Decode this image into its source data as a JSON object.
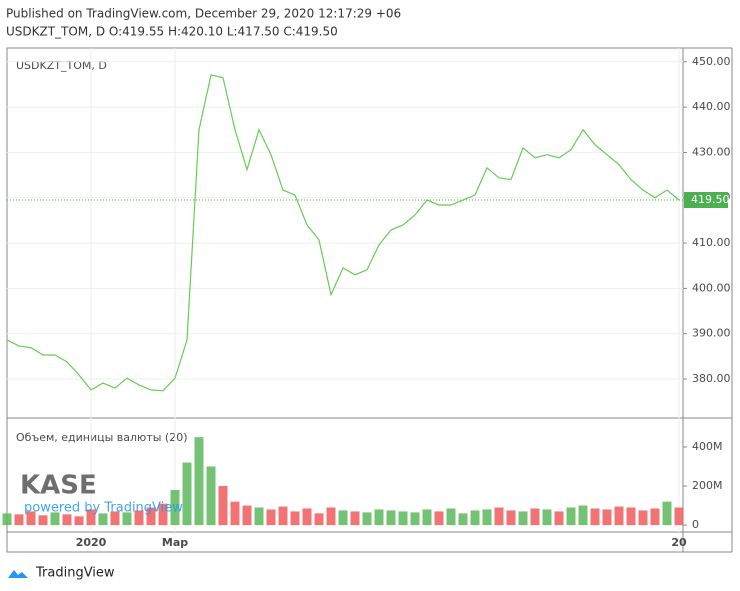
{
  "header": {
    "published": "Published on TradingView.com, December 29, 2020 12:17:29 +06",
    "ohlc": "USDKZT_TOM, D O:419.55 H:420.10 L:417.50 C:419.50"
  },
  "chart_data": [
    {
      "type": "line",
      "title": "USDKZT_TOM, D",
      "categories": [
        null,
        null,
        null,
        null,
        null,
        null,
        null,
        "2020",
        null,
        null,
        null,
        null,
        null,
        null,
        "Мар",
        null,
        null,
        null,
        null,
        null,
        null,
        null,
        null,
        null,
        null,
        null,
        null,
        null,
        null,
        null,
        null,
        null,
        null,
        null,
        null,
        null,
        null,
        null,
        null,
        null,
        null,
        null,
        null,
        null,
        null,
        null,
        null,
        null,
        null,
        null,
        null,
        null,
        null,
        null,
        null,
        null,
        "20"
      ],
      "series": [
        {
          "color": "#66cc55",
          "values": [
            388.6,
            387.3,
            386.9,
            385.3,
            385.3,
            383.8,
            380.9,
            377.6,
            379.1,
            378.0,
            380.2,
            378.7,
            377.6,
            377.4,
            380.2,
            388.6,
            435.0,
            447.1,
            446.5,
            435.0,
            426.2,
            435.0,
            429.5,
            421.7,
            420.6,
            414.0,
            410.7,
            398.6,
            404.5,
            403.0,
            404.1,
            409.6,
            412.9,
            414.0,
            416.2,
            419.5,
            418.4,
            418.4,
            419.5,
            420.6,
            426.6,
            424.4,
            424.0,
            431.0,
            428.8,
            429.5,
            428.8,
            430.6,
            435.0,
            431.7,
            429.5,
            427.3,
            424.0,
            421.7,
            420.0,
            421.7,
            419.5
          ]
        }
      ],
      "ylim": [
        371.4,
        452.6
      ],
      "yticks": [
        {
          "value": 380,
          "label": "380.00"
        },
        {
          "value": 390,
          "label": "390.00"
        },
        {
          "value": 400,
          "label": "400.00"
        },
        {
          "value": 410,
          "label": "410.00"
        },
        {
          "value": 420,
          "label": "420.00"
        },
        {
          "value": 430,
          "label": "430.00"
        },
        {
          "value": 440,
          "label": "440.00"
        },
        {
          "value": 450,
          "label": "450.00"
        }
      ],
      "last_value": {
        "value": 419.5,
        "label": "419.50"
      },
      "last_color": "#4caf50",
      "grid": true
    },
    {
      "type": "bar",
      "title": "Объем, единицы валюты (20)",
      "values": [
        60,
        55,
        70,
        50,
        65,
        55,
        45,
        80,
        60,
        70,
        65,
        75,
        90,
        110,
        180,
        320,
        450,
        300,
        200,
        120,
        100,
        90,
        80,
        95,
        70,
        85,
        60,
        90,
        75,
        70,
        65,
        80,
        75,
        70,
        65,
        80,
        70,
        85,
        60,
        75,
        80,
        90,
        75,
        70,
        85,
        80,
        70,
        90,
        100,
        85,
        80,
        95,
        90,
        75,
        85,
        120,
        90
      ],
      "up_color": "#5cb85c",
      "down_color": "#ef5b5b",
      "ylim": [
        -25,
        548
      ],
      "yticks": [
        0,
        {
          "value": 200,
          "label": "200M"
        },
        {
          "value": 400,
          "label": "400M"
        }
      ]
    }
  ],
  "logo": {
    "name": "KASE",
    "tagline": "powered by TradingView"
  },
  "footer": "TradingView"
}
